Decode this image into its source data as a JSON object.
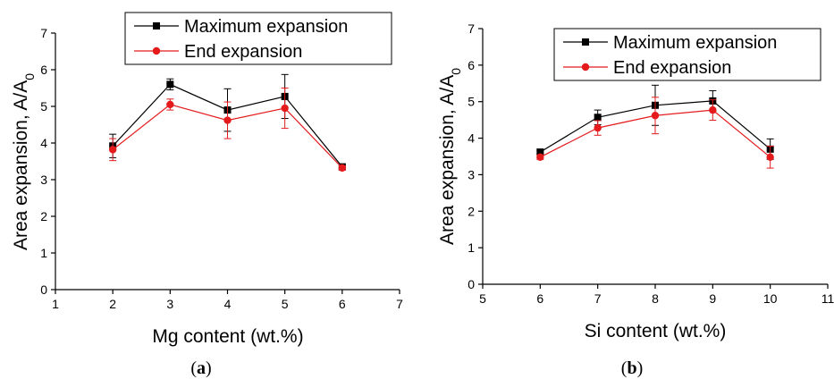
{
  "chart_data": [
    {
      "type": "line",
      "panel": "(a)",
      "panel_letter": "a",
      "xlabel": "Mg content (wt.%)",
      "ylabel": "Area expansion, A/A",
      "ylabel_sub": "0",
      "xlim": [
        1,
        7
      ],
      "ylim": [
        0,
        7
      ],
      "xticks": [
        1,
        2,
        3,
        4,
        5,
        6,
        7
      ],
      "yticks": [
        0,
        1,
        2,
        3,
        4,
        5,
        6,
        7
      ],
      "grid": false,
      "legend_position": "top-right",
      "x": [
        2,
        3,
        4,
        5,
        6
      ],
      "series": [
        {
          "name": "Maximum expansion",
          "color": "#000000",
          "marker": "square",
          "values": [
            3.92,
            5.6,
            4.9,
            5.27,
            3.35
          ],
          "errors": [
            0.32,
            0.15,
            0.58,
            0.6,
            0.06
          ]
        },
        {
          "name": "End expansion",
          "color": "#e41a1c",
          "marker": "circle",
          "values": [
            3.82,
            5.05,
            4.62,
            4.95,
            3.32
          ],
          "errors": [
            0.3,
            0.15,
            0.5,
            0.55,
            0.06
          ]
        }
      ]
    },
    {
      "type": "line",
      "panel": "(b)",
      "panel_letter": "b",
      "xlabel": "Si content (wt.%)",
      "ylabel": "Area expansion, A/A",
      "ylabel_sub": "0",
      "xlim": [
        5,
        11
      ],
      "ylim": [
        0,
        7
      ],
      "xticks": [
        5,
        6,
        7,
        8,
        9,
        10,
        11
      ],
      "yticks": [
        0,
        1,
        2,
        3,
        4,
        5,
        6,
        7
      ],
      "grid": false,
      "legend_position": "top-right",
      "x": [
        6,
        7,
        8,
        9,
        10
      ],
      "series": [
        {
          "name": "Maximum expansion",
          "color": "#000000",
          "marker": "square",
          "values": [
            3.62,
            4.57,
            4.9,
            5.02,
            3.7
          ],
          "errors": [
            0.05,
            0.2,
            0.55,
            0.28,
            0.28
          ]
        },
        {
          "name": "End expansion",
          "color": "#e41a1c",
          "marker": "circle",
          "values": [
            3.48,
            4.28,
            4.62,
            4.77,
            3.48
          ],
          "errors": [
            0.06,
            0.2,
            0.5,
            0.28,
            0.3
          ]
        }
      ]
    }
  ]
}
